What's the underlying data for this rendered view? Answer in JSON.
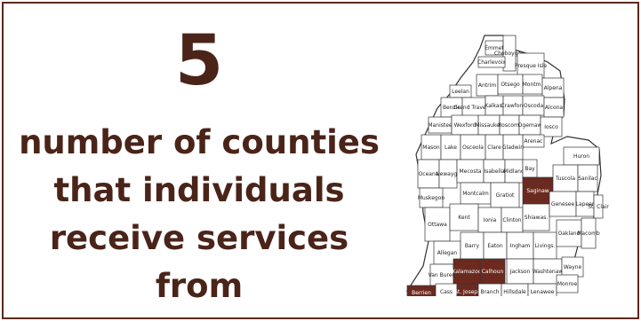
{
  "stat": {
    "value": "5"
  },
  "description": {
    "lines": [
      "number of counties",
      "that individuals",
      "receive services",
      "from"
    ]
  },
  "colors": {
    "text": "#4a2419",
    "highlight": "#6b2a1f",
    "border": "#5a2a1c"
  },
  "map": {
    "counties": [
      {
        "name": "Emmet",
        "served": false
      },
      {
        "name": "Cheboygan",
        "served": false
      },
      {
        "name": "Presque Isle",
        "served": false
      },
      {
        "name": "Charlevoix",
        "served": false
      },
      {
        "name": "Antrim",
        "served": false
      },
      {
        "name": "Otsego",
        "served": false
      },
      {
        "name": "Montm.",
        "served": false
      },
      {
        "name": "Alpena",
        "served": false
      },
      {
        "name": "Leelan",
        "served": false
      },
      {
        "name": "Benzie",
        "served": false
      },
      {
        "name": "Grand Traverse",
        "served": false
      },
      {
        "name": "Kalkas.",
        "served": false
      },
      {
        "name": "Crawford",
        "served": false
      },
      {
        "name": "Oscoda",
        "served": false
      },
      {
        "name": "Alcona",
        "served": false
      },
      {
        "name": "Manistee",
        "served": false
      },
      {
        "name": "Wexford",
        "served": false
      },
      {
        "name": "Missaukee",
        "served": false
      },
      {
        "name": "Roscom.",
        "served": false
      },
      {
        "name": "Ogemaw",
        "served": false
      },
      {
        "name": "Iosco",
        "served": false
      },
      {
        "name": "Arenac",
        "served": false
      },
      {
        "name": "Mason",
        "served": false
      },
      {
        "name": "Lake",
        "served": false
      },
      {
        "name": "Osceola",
        "served": false
      },
      {
        "name": "Clare",
        "served": false
      },
      {
        "name": "Gladwin",
        "served": false
      },
      {
        "name": "Huron",
        "served": false
      },
      {
        "name": "Oceana",
        "served": false
      },
      {
        "name": "Newaygo",
        "served": false
      },
      {
        "name": "Mecosta",
        "served": false
      },
      {
        "name": "Isabella",
        "served": false
      },
      {
        "name": "Midland",
        "served": false
      },
      {
        "name": "Bay",
        "served": false
      },
      {
        "name": "Muskegon",
        "served": false
      },
      {
        "name": "Montcalm",
        "served": false
      },
      {
        "name": "Gratiot",
        "served": false
      },
      {
        "name": "Saginaw",
        "served": true
      },
      {
        "name": "Tuscola",
        "served": false
      },
      {
        "name": "Sanilac",
        "served": false
      },
      {
        "name": "Ottawa",
        "served": false
      },
      {
        "name": "Kent",
        "served": false
      },
      {
        "name": "Ionia",
        "served": false
      },
      {
        "name": "Clinton",
        "served": false
      },
      {
        "name": "Shiawas.",
        "served": false
      },
      {
        "name": "Genesee",
        "served": false
      },
      {
        "name": "Lapeer",
        "served": false
      },
      {
        "name": "St. Clair",
        "served": false
      },
      {
        "name": "Allegan",
        "served": false
      },
      {
        "name": "Barry",
        "served": false
      },
      {
        "name": "Eaton",
        "served": false
      },
      {
        "name": "Ingham",
        "served": false
      },
      {
        "name": "Livings.",
        "served": false
      },
      {
        "name": "Oakland",
        "served": false
      },
      {
        "name": "Macomb",
        "served": false
      },
      {
        "name": "Van Buren",
        "served": false
      },
      {
        "name": "Kalamazoo",
        "served": true
      },
      {
        "name": "Calhoun",
        "served": true
      },
      {
        "name": "Jackson",
        "served": false
      },
      {
        "name": "Washtenaw",
        "served": false
      },
      {
        "name": "Wayne",
        "served": false
      },
      {
        "name": "Berrien",
        "served": true
      },
      {
        "name": "Cass",
        "served": false
      },
      {
        "name": "St. Joseph",
        "served": true
      },
      {
        "name": "Branch",
        "served": false
      },
      {
        "name": "Hillsdale",
        "served": false
      },
      {
        "name": "Lenawee",
        "served": false
      },
      {
        "name": "Monroe",
        "served": false
      }
    ]
  }
}
